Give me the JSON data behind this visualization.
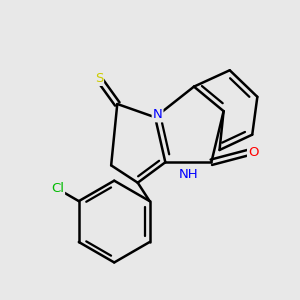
{
  "background_color": "#e8e8e8",
  "bond_color": "#000000",
  "bond_width": 1.8,
  "atom_colors": {
    "N": "#0000ff",
    "O": "#ff0000",
    "S_thioxo": "#cccc00",
    "S_ring": "#000000",
    "Cl": "#00bb00",
    "C": "#000000"
  },
  "figsize": [
    3.0,
    3.0
  ],
  "dpi": 100
}
